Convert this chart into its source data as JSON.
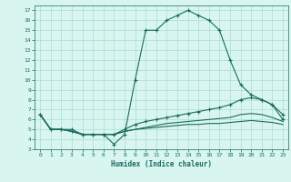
{
  "xlabel": "Humidex (Indice chaleur)",
  "bg_color": "#d8f5f0",
  "grid_color": "#aaddd5",
  "line_color": "#1a6b5e",
  "xlim": [
    -0.5,
    23.5
  ],
  "ylim": [
    3,
    17.5
  ],
  "yticks": [
    3,
    4,
    5,
    6,
    7,
    8,
    9,
    10,
    11,
    12,
    13,
    14,
    15,
    16,
    17
  ],
  "xticks": [
    0,
    1,
    2,
    3,
    4,
    5,
    6,
    7,
    8,
    9,
    10,
    11,
    12,
    13,
    14,
    15,
    16,
    17,
    18,
    19,
    20,
    21,
    22,
    23
  ],
  "line1_x": [
    0,
    1,
    2,
    3,
    4,
    5,
    6,
    7,
    8,
    9,
    10,
    11,
    12,
    13,
    14,
    15,
    16,
    17,
    18,
    19,
    20,
    21,
    22,
    23
  ],
  "line1_y": [
    6.5,
    5.0,
    5.0,
    5.0,
    4.5,
    4.5,
    4.5,
    3.5,
    4.5,
    10.0,
    15.0,
    15.0,
    16.0,
    16.5,
    17.0,
    16.5,
    16.0,
    15.0,
    12.0,
    9.5,
    8.5,
    8.0,
    7.5,
    6.0
  ],
  "line2_x": [
    0,
    1,
    2,
    3,
    4,
    5,
    6,
    7,
    8,
    9,
    10,
    11,
    12,
    13,
    14,
    15,
    16,
    17,
    18,
    19,
    20,
    21,
    22,
    23
  ],
  "line2_y": [
    6.5,
    5.0,
    5.0,
    4.8,
    4.5,
    4.5,
    4.5,
    4.5,
    5.0,
    5.5,
    5.8,
    6.0,
    6.2,
    6.4,
    6.6,
    6.8,
    7.0,
    7.2,
    7.5,
    8.0,
    8.2,
    8.0,
    7.5,
    6.5
  ],
  "line3_x": [
    0,
    1,
    2,
    3,
    4,
    5,
    6,
    7,
    8,
    9,
    10,
    11,
    12,
    13,
    14,
    15,
    16,
    17,
    18,
    19,
    20,
    21,
    22,
    23
  ],
  "line3_y": [
    6.5,
    5.0,
    5.0,
    4.8,
    4.5,
    4.5,
    4.5,
    4.5,
    4.8,
    5.0,
    5.2,
    5.4,
    5.6,
    5.7,
    5.8,
    5.9,
    6.0,
    6.1,
    6.2,
    6.5,
    6.6,
    6.5,
    6.2,
    5.8
  ],
  "line4_x": [
    0,
    1,
    2,
    3,
    4,
    5,
    6,
    7,
    8,
    9,
    10,
    11,
    12,
    13,
    14,
    15,
    16,
    17,
    18,
    19,
    20,
    21,
    22,
    23
  ],
  "line4_y": [
    6.5,
    5.0,
    5.0,
    4.8,
    4.5,
    4.5,
    4.5,
    4.5,
    4.8,
    5.0,
    5.1,
    5.2,
    5.3,
    5.4,
    5.5,
    5.5,
    5.6,
    5.6,
    5.7,
    5.8,
    5.9,
    5.8,
    5.7,
    5.5
  ]
}
